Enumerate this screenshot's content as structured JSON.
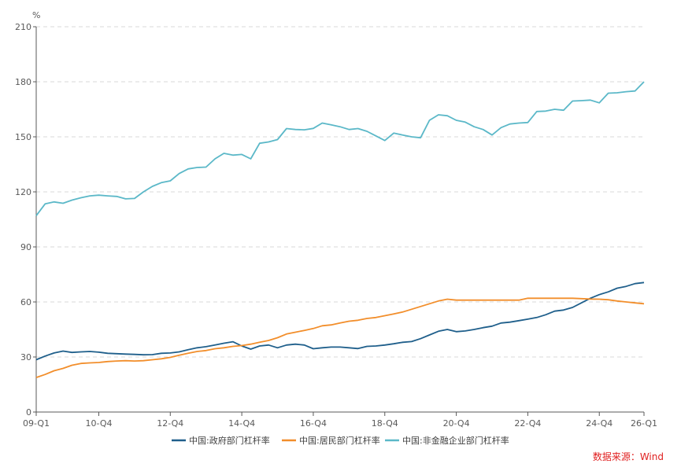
{
  "source_note": "数据来源：Wind",
  "chart_data": {
    "type": "line",
    "y_unit": "%",
    "ylim": [
      0,
      210
    ],
    "y_ticks": [
      0,
      30,
      60,
      90,
      120,
      150,
      180,
      210
    ],
    "grid": "horizontal dashed",
    "legend_position": "bottom-center",
    "x_tick_labels": [
      "09-Q1",
      "10-Q4",
      "12-Q4",
      "14-Q4",
      "16-Q4",
      "18-Q4",
      "20-Q4",
      "22-Q4",
      "24-Q4",
      "26-Q1"
    ],
    "x_tick_index": [
      0,
      7,
      15,
      23,
      31,
      39,
      47,
      55,
      63,
      68
    ],
    "x": [
      "09-Q1",
      "09-Q2",
      "09-Q3",
      "09-Q4",
      "10-Q1",
      "10-Q2",
      "10-Q3",
      "10-Q4",
      "11-Q1",
      "11-Q2",
      "11-Q3",
      "11-Q4",
      "12-Q1",
      "12-Q2",
      "12-Q3",
      "12-Q4",
      "13-Q1",
      "13-Q2",
      "13-Q3",
      "13-Q4",
      "14-Q1",
      "14-Q2",
      "14-Q3",
      "14-Q4",
      "15-Q1",
      "15-Q2",
      "15-Q3",
      "15-Q4",
      "16-Q1",
      "16-Q2",
      "16-Q3",
      "16-Q4",
      "17-Q1",
      "17-Q2",
      "17-Q3",
      "17-Q4",
      "18-Q1",
      "18-Q2",
      "18-Q3",
      "18-Q4",
      "19-Q1",
      "19-Q2",
      "19-Q3",
      "19-Q4",
      "20-Q1",
      "20-Q2",
      "20-Q3",
      "20-Q4",
      "21-Q1",
      "21-Q2",
      "21-Q3",
      "21-Q4",
      "22-Q1",
      "22-Q2",
      "22-Q3",
      "22-Q4",
      "23-Q1",
      "23-Q2",
      "23-Q3",
      "23-Q4",
      "24-Q1",
      "24-Q2",
      "24-Q3",
      "24-Q4",
      "25-Q1",
      "25-Q2",
      "25-Q3",
      "25-Q4",
      "26-Q1"
    ],
    "series": [
      {
        "name": "中国:政府部门杠杆率",
        "color": "#1f5f8b",
        "values": [
          28.5,
          30.5,
          32.2,
          33.2,
          32.5,
          32.8,
          33.0,
          32.6,
          32.0,
          31.8,
          31.6,
          31.4,
          31.2,
          31.3,
          32.0,
          32.2,
          32.8,
          34.0,
          35.0,
          35.6,
          36.5,
          37.5,
          38.3,
          36.0,
          34.3,
          36.0,
          36.5,
          35.0,
          36.5,
          37.0,
          36.5,
          34.5,
          35.0,
          35.4,
          35.4,
          35.0,
          34.6,
          35.8,
          36.0,
          36.5,
          37.2,
          38.0,
          38.4,
          40.0,
          42.0,
          44.0,
          45.0,
          43.8,
          44.2,
          45.0,
          46.0,
          46.8,
          48.5,
          49.0,
          49.8,
          50.6,
          51.5,
          53.0,
          55.0,
          55.6,
          57.0,
          59.5,
          62.0,
          64.0,
          65.5,
          67.5,
          68.5,
          70.0,
          70.6
        ]
      },
      {
        "name": "中国:居民部门杠杆率",
        "color": "#f28e2b",
        "values": [
          18.8,
          20.5,
          22.5,
          23.8,
          25.5,
          26.5,
          26.8,
          27.0,
          27.5,
          27.8,
          28.0,
          27.8,
          28.0,
          28.5,
          29.0,
          29.8,
          31.0,
          32.0,
          33.0,
          33.5,
          34.5,
          35.0,
          35.8,
          36.2,
          37.0,
          38.0,
          39.0,
          40.5,
          42.5,
          43.5,
          44.5,
          45.5,
          47.0,
          47.5,
          48.5,
          49.5,
          50.0,
          51.0,
          51.5,
          52.5,
          53.5,
          54.5,
          56.0,
          57.5,
          59.0,
          60.5,
          61.5,
          61.0,
          61.0,
          61.0,
          61.0,
          61.0,
          61.0,
          61.0,
          61.0,
          62.0,
          62.0,
          62.0,
          62.0,
          62.0,
          62.0,
          61.8,
          61.6,
          61.5,
          61.2,
          60.5,
          60.0,
          59.5,
          59.0
        ]
      },
      {
        "name": "中国:非金融企业部门杠杆率",
        "color": "#5bb8c8",
        "values": [
          107.0,
          113.5,
          114.5,
          113.8,
          115.5,
          116.8,
          117.8,
          118.2,
          117.8,
          117.5,
          116.2,
          116.4,
          120.0,
          123.0,
          125.0,
          126.0,
          130.0,
          132.5,
          133.3,
          133.5,
          138.0,
          141.0,
          140.0,
          140.4,
          138.0,
          146.5,
          147.2,
          148.5,
          154.5,
          154.0,
          153.8,
          154.6,
          157.5,
          156.5,
          155.5,
          154.0,
          154.5,
          153.0,
          150.5,
          148.0,
          152.0,
          151.0,
          150.0,
          149.5,
          159.0,
          162.0,
          161.5,
          159.0,
          158.0,
          155.5,
          154.0,
          151.0,
          155.0,
          157.0,
          157.5,
          157.8,
          163.8,
          164.0,
          165.0,
          164.5,
          169.5,
          169.7,
          170.0,
          168.5,
          173.8,
          174.0,
          174.6,
          175.0,
          180.0
        ]
      }
    ]
  }
}
